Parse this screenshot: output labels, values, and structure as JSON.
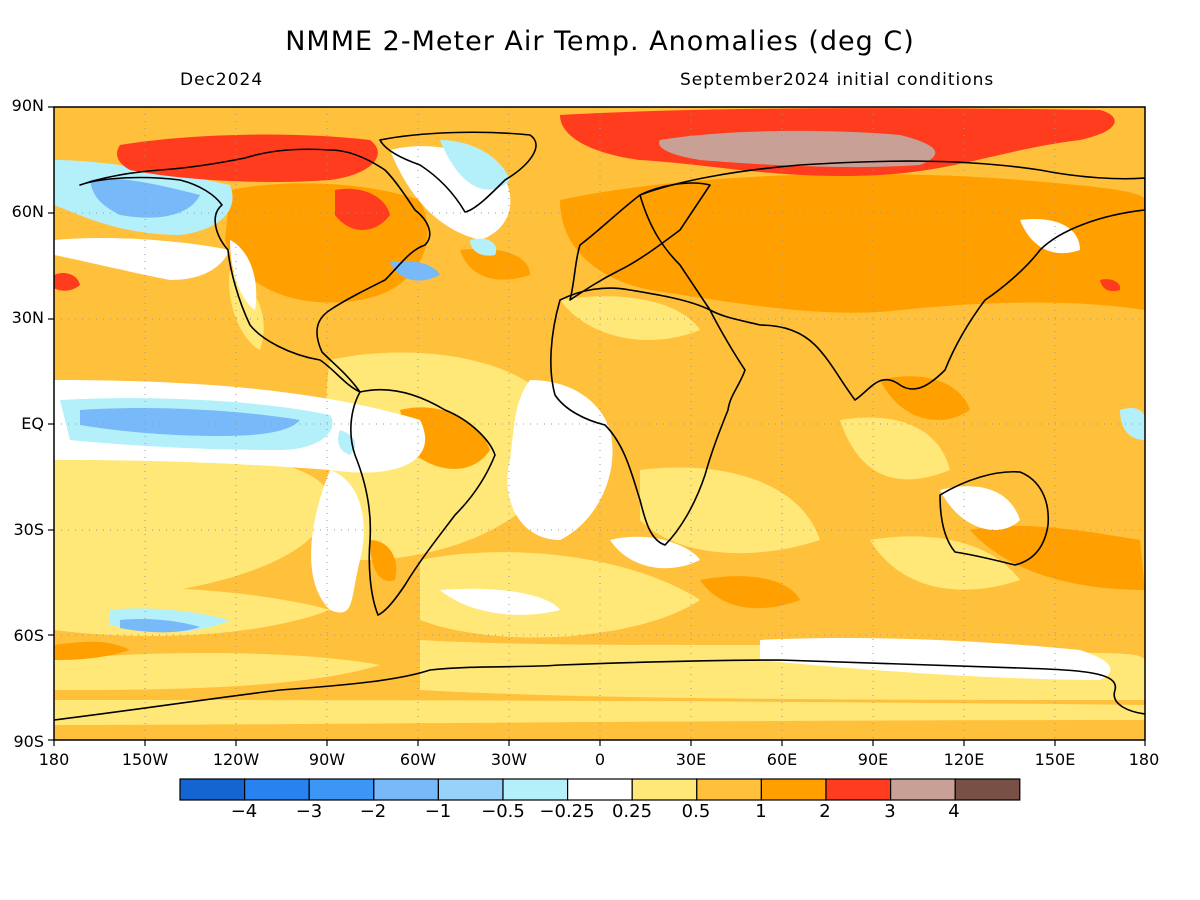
{
  "title": "NMME 2-Meter Air Temp. Anomalies (deg C)",
  "valid_month": "Dec2024",
  "initial_conditions": "September2024 initial conditions",
  "lat_labels": [
    "90N",
    "60N",
    "30N",
    "EQ",
    "30S",
    "60S",
    "90S"
  ],
  "lon_labels": [
    "180",
    "150W",
    "120W",
    "90W",
    "60W",
    "30W",
    "0",
    "30E",
    "60E",
    "90E",
    "120E",
    "150E",
    "180"
  ],
  "colorbar": {
    "colors": [
      "#1464d2",
      "#2882f0",
      "#3c96f5",
      "#78b9fa",
      "#96d2fa",
      "#b4f0fa",
      "#ffffff",
      "#ffe878",
      "#ffc03c",
      "#ffa000",
      "#ff3c1e",
      "#c8a096",
      "#785046"
    ],
    "labels": [
      "−4",
      "−3",
      "−2",
      "−1",
      "−0.5",
      "−0.25",
      "0.25",
      "0.5",
      "1",
      "2",
      "3",
      "4"
    ]
  },
  "map_colors": {
    "ocean_base": "#ffc03c",
    "coastline": "#000000",
    "grid": "#999999"
  }
}
